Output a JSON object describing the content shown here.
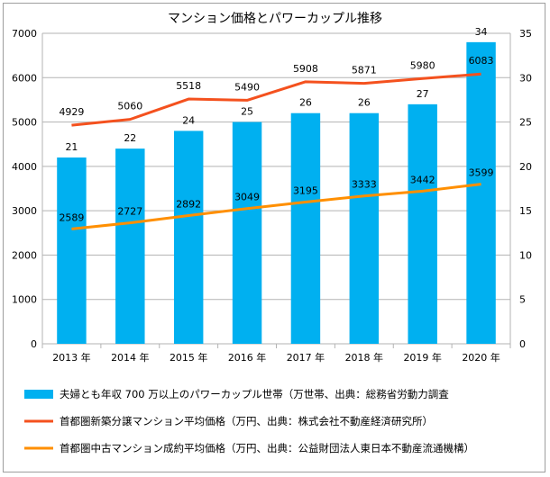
{
  "chart_data": {
    "type": "bar",
    "title": "マンション価格とパワーカップル推移",
    "categories": [
      "2013 年",
      "2014 年",
      "2015 年",
      "2016 年",
      "2017 年",
      "2018 年",
      "2019 年",
      "2020 年"
    ],
    "bar_series": {
      "name": "夫婦とも年収 700 万以上のパワーカップル世帯（万世帯、出典：総務省労動力調査",
      "values": [
        21,
        22,
        24,
        25,
        26,
        26,
        27,
        34
      ],
      "axis": "right",
      "color": "#00b0f0"
    },
    "line_series": [
      {
        "name": "首都圏新築分譲マンション平均価格（万円、出典：株式会社不動産経済研究所）",
        "values": [
          4929,
          5060,
          5518,
          5490,
          5908,
          5871,
          5980,
          6083
        ],
        "axis": "left",
        "color": "#f4511e"
      },
      {
        "name": "首都圏中古マンション成約平均価格（万円、出典：公益財団法人東日本不動産流通機構）",
        "values": [
          2589,
          2727,
          2892,
          3049,
          3195,
          3333,
          3442,
          3599
        ],
        "axis": "left",
        "color": "#ff8f00"
      }
    ],
    "left_axis": {
      "ylim": [
        0,
        7000
      ],
      "ticks": [
        "0",
        "1000",
        "2000",
        "3000",
        "4000",
        "5000",
        "6000",
        "7000"
      ]
    },
    "right_axis": {
      "ylim": [
        0,
        35
      ],
      "ticks": [
        "0",
        "5",
        "10",
        "15",
        "20",
        "25",
        "30",
        "35"
      ]
    },
    "grid": true,
    "legend_position": "bottom"
  }
}
